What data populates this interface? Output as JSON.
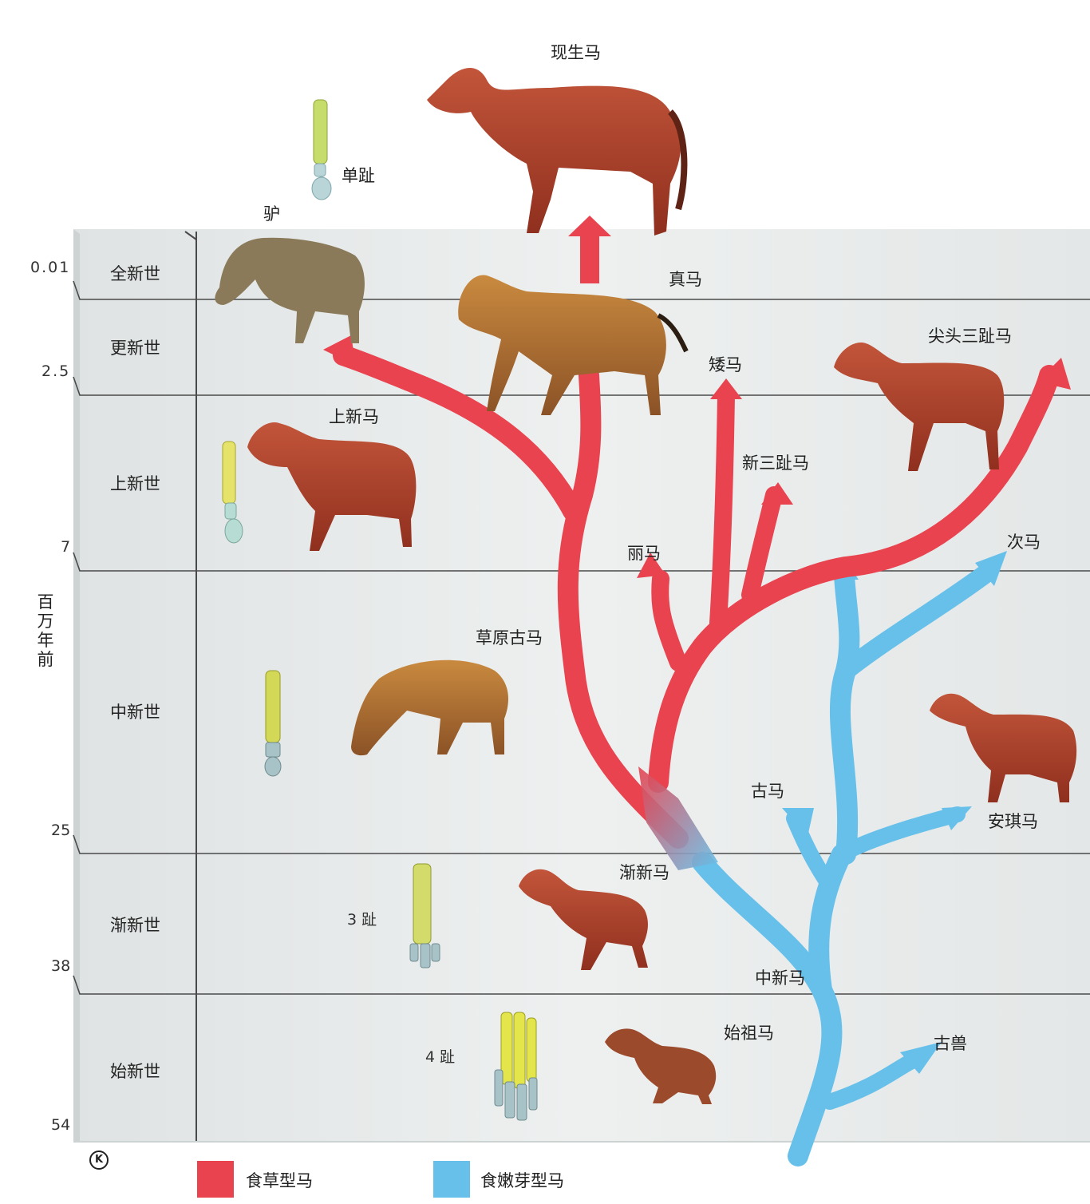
{
  "epochs": {
    "holocene": "全新世",
    "pleistocene": "更新世",
    "pliocene": "上新世",
    "miocene": "中新世",
    "oligocene": "渐新世",
    "eocene": "始新世"
  },
  "ticks": {
    "t001": "0.01",
    "t25a": "2.5",
    "t7": "7",
    "t25": "25",
    "t38": "38",
    "t54": "54"
  },
  "axis_unit": [
    "百",
    "万",
    "年",
    "前"
  ],
  "taxa": {
    "modern_horse": "现生马",
    "donkey": "驴",
    "equus": "真马",
    "pony": "矮马",
    "hipparion_point": "尖头三趾马",
    "pliohippus": "上新马",
    "neohipparion": "新三趾马",
    "li_ma": "丽马",
    "ci_ma": "次马",
    "merychippus": "草原古马",
    "gu_ma": "古马",
    "anchitherium": "安琪马",
    "mesohippus_label": "渐新马",
    "miohippus": "中新马",
    "eohippus": "始祖马",
    "gu_shou": "古兽"
  },
  "toes": {
    "single": "单趾",
    "three": "3 趾",
    "four": "4 趾"
  },
  "legend": {
    "grazers": "食草型马",
    "browsers": "食嫩芽型马"
  },
  "colors": {
    "grazer": "#e8434f",
    "browser": "#66c0ea",
    "panel": "#e9ecec",
    "line": "#4a4a4a",
    "hoof_yellow": "#d7e04a",
    "hoof_blue": "#a9d3db"
  },
  "copyright_mark": "K"
}
